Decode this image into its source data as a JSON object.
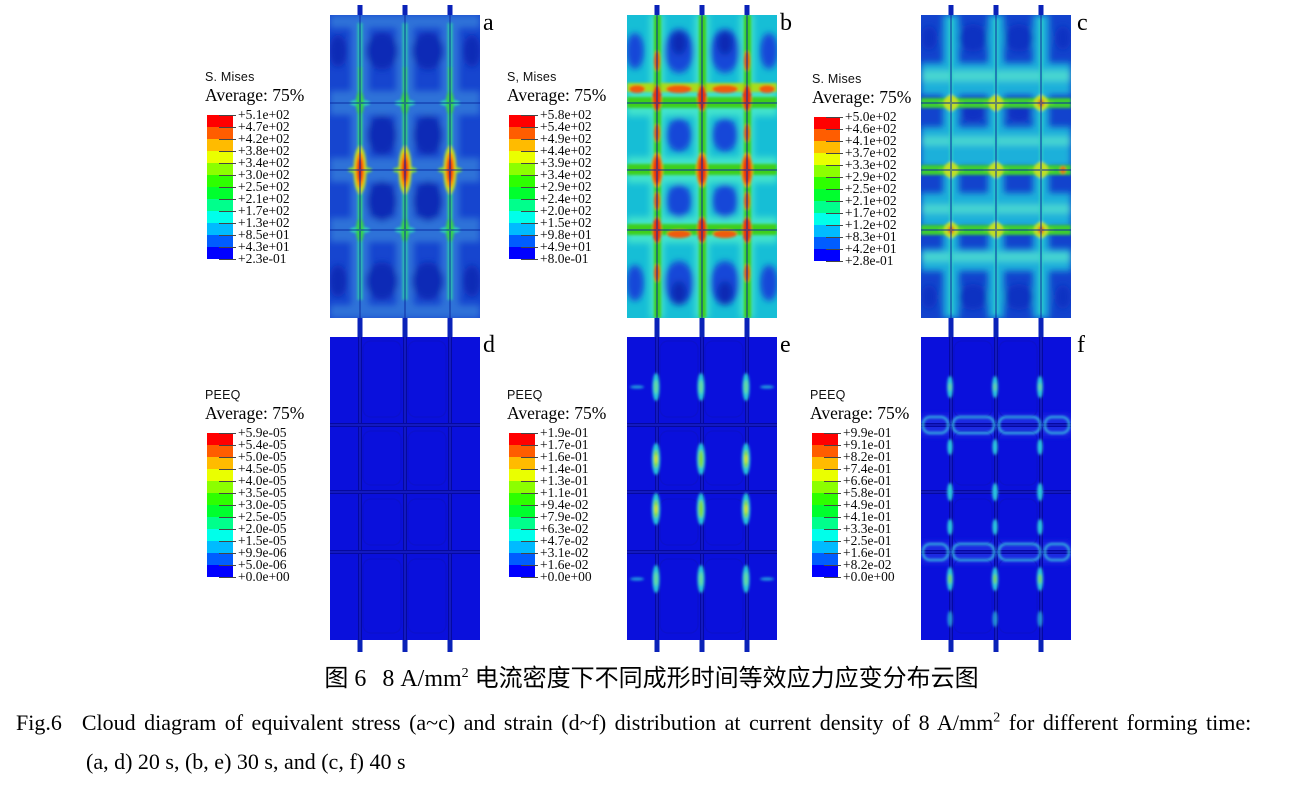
{
  "figure": {
    "panels": [
      {
        "label": "a",
        "legend": {
          "title": "S. Mises",
          "average": "Average: 75%",
          "ticks": [
            "+5.1e+02",
            "+4.7e+02",
            "+4.2e+02",
            "+3.8e+02",
            "+3.4e+02",
            "+3.0e+02",
            "+2.5e+02",
            "+2.1e+02",
            "+1.7e+02",
            "+1.3e+02",
            "+8.5e+01",
            "+4.3e+01",
            "+2.3e-01"
          ]
        }
      },
      {
        "label": "b",
        "legend": {
          "title": "S, Mises",
          "average": "Average: 75%",
          "ticks": [
            "+5.8e+02",
            "+5.4e+02",
            "+4.9e+02",
            "+4.4e+02",
            "+3.9e+02",
            "+3.4e+02",
            "+2.9e+02",
            "+2.4e+02",
            "+2.0e+02",
            "+1.5e+02",
            "+9.8e+01",
            "+4.9e+01",
            "+8.0e-01"
          ]
        }
      },
      {
        "label": "c",
        "legend": {
          "title": "S. Mises",
          "average": "Average: 75%",
          "ticks": [
            "+5.0e+02",
            "+4.6e+02",
            "+4.1e+02",
            "+3.7e+02",
            "+3.3e+02",
            "+2.9e+02",
            "+2.5e+02",
            "+2.1e+02",
            "+1.7e+02",
            "+1.2e+02",
            "+8.3e+01",
            "+4.2e+01",
            "+2.8e-01"
          ]
        }
      },
      {
        "label": "d",
        "legend": {
          "title": "PEEQ",
          "average": "Average: 75%",
          "ticks": [
            "+5.9e-05",
            "+5.4e-05",
            "+5.0e-05",
            "+4.5e-05",
            "+4.0e-05",
            "+3.5e-05",
            "+3.0e-05",
            "+2.5e-05",
            "+2.0e-05",
            "+1.5e-05",
            "+9.9e-06",
            "+5.0e-06",
            "+0.0e+00"
          ]
        }
      },
      {
        "label": "e",
        "legend": {
          "title": "PEEQ",
          "average": "Average: 75%",
          "ticks": [
            "+1.9e-01",
            "+1.7e-01",
            "+1.6e-01",
            "+1.4e-01",
            "+1.3e-01",
            "+1.1e-01",
            "+9.4e-02",
            "+7.9e-02",
            "+6.3e-02",
            "+4.7e-02",
            "+3.1e-02",
            "+1.6e-02",
            "+0.0e+00"
          ]
        }
      },
      {
        "label": "f",
        "legend": {
          "title": "PEEQ",
          "average": "Average: 75%",
          "ticks": [
            "+9.9e-01",
            "+9.1e-01",
            "+8.2e-01",
            "+7.4e-01",
            "+6.6e-01",
            "+5.8e-01",
            "+4.9e-01",
            "+4.1e-01",
            "+3.3e-01",
            "+2.5e-01",
            "+1.6e-01",
            "+8.2e-02",
            "+0.0e+00"
          ]
        }
      }
    ],
    "colorbar_colors": [
      "#ff0000",
      "#ff5d00",
      "#ffbb00",
      "#eaff00",
      "#8cff00",
      "#2eff00",
      "#00ff2e",
      "#00ff8c",
      "#00ffea",
      "#00bbff",
      "#005dff",
      "#0000ff"
    ],
    "caption_zh": {
      "fig_no": "图 6",
      "pre_sup": "8 A/mm",
      "sup": "2",
      "post_sup": " 电流密度下不同成形时间等效应力应变分布云图"
    },
    "caption_en": {
      "fig_no": "Fig.6",
      "pre_sup": "Cloud diagram of equivalent stress (a~c) and strain (d~f) distribution at current density of 8 A/mm",
      "sup": "2",
      "post_sup": " for different forming time:",
      "line2": "(a, d) 20 s, (b, e) 30 s, and (c, f) 40 s"
    }
  }
}
